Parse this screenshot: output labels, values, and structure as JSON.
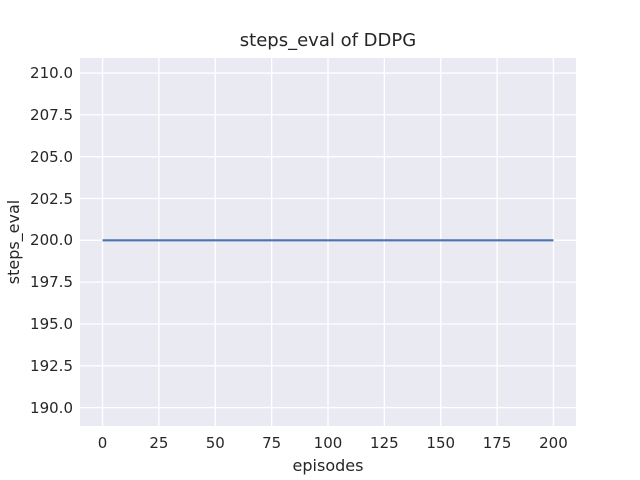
{
  "chart_data": {
    "type": "line",
    "title": "steps_eval of DDPG",
    "xlabel": "episodes",
    "ylabel": "steps_eval",
    "xlim": [
      -10,
      210
    ],
    "ylim": [
      188.9,
      210.9
    ],
    "x_ticks": [
      0,
      25,
      50,
      75,
      100,
      125,
      150,
      175,
      200
    ],
    "x_tick_labels": [
      "0",
      "25",
      "50",
      "75",
      "100",
      "125",
      "150",
      "175",
      "200"
    ],
    "y_ticks": [
      190.0,
      192.5,
      195.0,
      197.5,
      200.0,
      202.5,
      205.0,
      207.5,
      210.0
    ],
    "y_tick_labels": [
      "190.0",
      "192.5",
      "195.0",
      "197.5",
      "200.0",
      "202.5",
      "205.0",
      "207.5",
      "210.0"
    ],
    "grid": true,
    "legend": "none",
    "style": "seaborn-darkgrid",
    "plot_background": "#EAEAF2",
    "grid_color": "#FFFFFF",
    "text_color": "#262626",
    "series": [
      {
        "name": "DDPG",
        "color": "#4C72B0",
        "x": [
          0,
          200
        ],
        "y": [
          200,
          200
        ]
      }
    ]
  }
}
